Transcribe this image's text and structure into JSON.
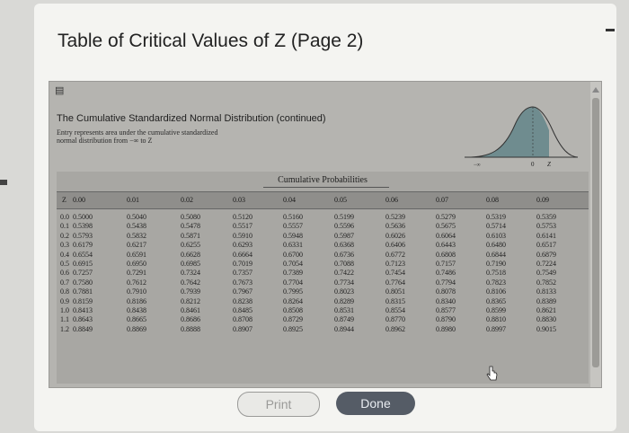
{
  "dialog": {
    "title": "Table of Critical Values of Z (Page 2)",
    "print_label": "Print",
    "done_label": "Done"
  },
  "intro": {
    "title": "The Cumulative Standardized Normal Distribution (continued)",
    "subtitle_line1": "Entry represents area under the cumulative standardized",
    "subtitle_line2": "normal distribution from −∞ to Z"
  },
  "curve_labels": {
    "left": "−∞",
    "zero": "0",
    "z": "Z"
  },
  "table": {
    "caption": "Cumulative Probabilities",
    "z_header": "Z",
    "headers": [
      "0.00",
      "0.01",
      "0.02",
      "0.03",
      "0.04",
      "0.05",
      "0.06",
      "0.07",
      "0.08",
      "0.09"
    ],
    "z_values": [
      "0.0",
      "0.1",
      "0.2",
      "0.3",
      "0.4",
      "0.5",
      "0.6",
      "0.7",
      "0.8",
      "0.9",
      "1.0",
      "1.1",
      "1.2"
    ],
    "columns": [
      [
        "0.5000",
        "0.5398",
        "0.5793",
        "0.6179",
        "0.6554",
        "0.6915",
        "0.7257",
        "0.7580",
        "0.7881",
        "0.8159",
        "0.8413",
        "0.8643",
        "0.8849"
      ],
      [
        "0.5040",
        "0.5438",
        "0.5832",
        "0.6217",
        "0.6591",
        "0.6950",
        "0.7291",
        "0.7612",
        "0.7910",
        "0.8186",
        "0.8438",
        "0.8665",
        "0.8869"
      ],
      [
        "0.5080",
        "0.5478",
        "0.5871",
        "0.6255",
        "0.6628",
        "0.6985",
        "0.7324",
        "0.7642",
        "0.7939",
        "0.8212",
        "0.8461",
        "0.8686",
        "0.8888"
      ],
      [
        "0.5120",
        "0.5517",
        "0.5910",
        "0.6293",
        "0.6664",
        "0.7019",
        "0.7357",
        "0.7673",
        "0.7967",
        "0.8238",
        "0.8485",
        "0.8708",
        "0.8907"
      ],
      [
        "0.5160",
        "0.5557",
        "0.5948",
        "0.6331",
        "0.6700",
        "0.7054",
        "0.7389",
        "0.7704",
        "0.7995",
        "0.8264",
        "0.8508",
        "0.8729",
        "0.8925"
      ],
      [
        "0.5199",
        "0.5596",
        "0.5987",
        "0.6368",
        "0.6736",
        "0.7088",
        "0.7422",
        "0.7734",
        "0.8023",
        "0.8289",
        "0.8531",
        "0.8749",
        "0.8944"
      ],
      [
        "0.5239",
        "0.5636",
        "0.6026",
        "0.6406",
        "0.6772",
        "0.7123",
        "0.7454",
        "0.7764",
        "0.8051",
        "0.8315",
        "0.8554",
        "0.8770",
        "0.8962"
      ],
      [
        "0.5279",
        "0.5675",
        "0.6064",
        "0.6443",
        "0.6808",
        "0.7157",
        "0.7486",
        "0.7794",
        "0.8078",
        "0.8340",
        "0.8577",
        "0.8790",
        "0.8980"
      ],
      [
        "0.5319",
        "0.5714",
        "0.6103",
        "0.6480",
        "0.6844",
        "0.7190",
        "0.7518",
        "0.7823",
        "0.8106",
        "0.8365",
        "0.8599",
        "0.8810",
        "0.8997"
      ],
      [
        "0.5359",
        "0.5753",
        "0.6141",
        "0.6517",
        "0.6879",
        "0.7224",
        "0.7549",
        "0.7852",
        "0.8133",
        "0.8389",
        "0.8621",
        "0.8830",
        "0.9015"
      ]
    ]
  },
  "colors": {
    "done_bg": "#555c66",
    "panel_bg": "#b5b4b0",
    "curve_fill": "#6f8c8f"
  }
}
